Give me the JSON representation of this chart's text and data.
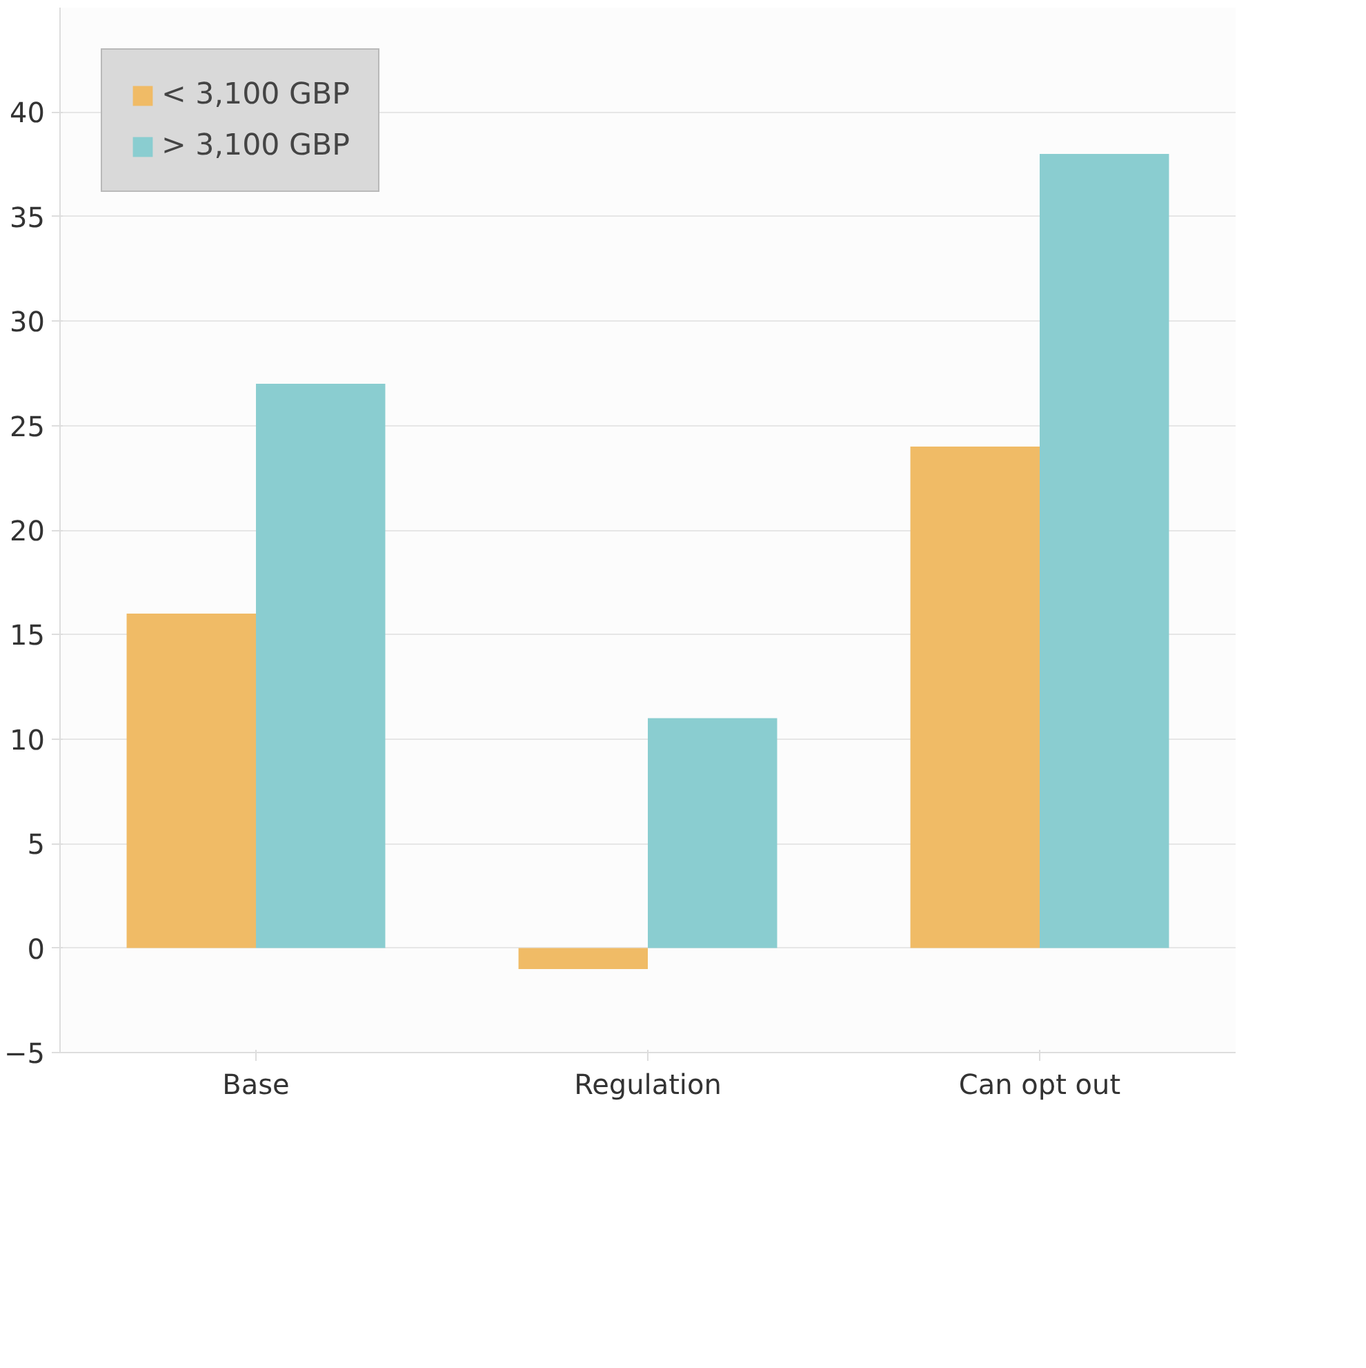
{
  "chart_data": {
    "type": "bar",
    "categories": [
      "Base",
      "Regulation",
      "Can opt out"
    ],
    "series": [
      {
        "name": "< 3,100 GBP",
        "color": "#f0bb66",
        "values": [
          16,
          -1,
          24
        ]
      },
      {
        "name": "> 3,100 GBP",
        "color": "#8acdd0",
        "values": [
          27,
          11,
          38
        ]
      }
    ],
    "ylim": [
      -5,
      45
    ],
    "yticks": [
      -5,
      0,
      5,
      10,
      15,
      20,
      25,
      30,
      35,
      40
    ],
    "grid": "y",
    "legend": "top left"
  }
}
